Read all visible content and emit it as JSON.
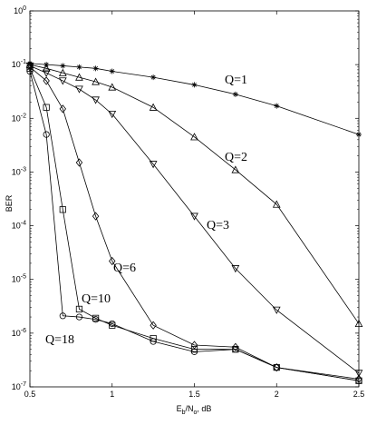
{
  "chart_data": {
    "type": "line",
    "xlabel": "E_b/N_o, dB",
    "xlabel_parts": {
      "main": "E",
      "sub1": "b",
      "mid": "/N",
      "sub2": "o",
      "suffix": ", dB"
    },
    "ylabel": "BER",
    "xlim": [
      0.5,
      2.5
    ],
    "ylim": [
      1e-07,
      1
    ],
    "yscale": "log",
    "grid": false,
    "x_ticks": [
      "0.5",
      "1",
      "1.5",
      "2",
      "2.5"
    ],
    "y_ticks": [
      {
        "base": "10",
        "exp": "0"
      },
      {
        "base": "10",
        "exp": "-1"
      },
      {
        "base": "10",
        "exp": "-2"
      },
      {
        "base": "10",
        "exp": "-3"
      },
      {
        "base": "10",
        "exp": "-4"
      },
      {
        "base": "10",
        "exp": "-5"
      },
      {
        "base": "10",
        "exp": "-6"
      },
      {
        "base": "10",
        "exp": "-7"
      }
    ],
    "series": [
      {
        "name": "Q=1",
        "marker": "asterisk",
        "x": [
          0.5,
          0.6,
          0.7,
          0.8,
          0.9,
          1.0,
          1.25,
          1.5,
          1.75,
          2.0,
          2.5
        ],
        "y": [
          0.105,
          0.1,
          0.095,
          0.09,
          0.085,
          0.075,
          0.058,
          0.042,
          0.028,
          0.017,
          0.005
        ]
      },
      {
        "name": "Q=2",
        "marker": "triangle-up",
        "x": [
          0.5,
          0.6,
          0.7,
          0.8,
          0.9,
          1.0,
          1.25,
          1.5,
          1.75,
          2.0,
          2.5
        ],
        "y": [
          0.1,
          0.085,
          0.07,
          0.058,
          0.048,
          0.038,
          0.016,
          0.0045,
          0.0011,
          0.00025,
          1.5e-06
        ]
      },
      {
        "name": "Q=3",
        "marker": "triangle-down",
        "x": [
          0.5,
          0.6,
          0.7,
          0.8,
          0.9,
          1.0,
          1.25,
          1.5,
          1.75,
          2.0,
          2.5
        ],
        "y": [
          0.095,
          0.07,
          0.05,
          0.035,
          0.022,
          0.012,
          0.0014,
          0.00015,
          1.6e-05,
          2.7e-06,
          1.8e-07
        ]
      },
      {
        "name": "Q=6",
        "marker": "diamond",
        "x": [
          0.5,
          0.6,
          0.7,
          0.8,
          0.9,
          1.0,
          1.25,
          1.5,
          1.75,
          2.0,
          2.5
        ],
        "y": [
          0.09,
          0.05,
          0.015,
          0.0015,
          0.00015,
          2.2e-05,
          1.4e-06,
          6e-07,
          5.5e-07,
          2.3e-07,
          1.4e-07
        ]
      },
      {
        "name": "Q=10",
        "marker": "square",
        "x": [
          0.5,
          0.6,
          0.7,
          0.8,
          0.9,
          1.0,
          1.25,
          1.5,
          1.75,
          2.0,
          2.5
        ],
        "y": [
          0.085,
          0.016,
          0.0002,
          2.8e-06,
          1.9e-06,
          1.4e-06,
          8e-07,
          5e-07,
          5e-07,
          2.3e-07,
          1.3e-07
        ]
      },
      {
        "name": "Q=18",
        "marker": "circle",
        "x": [
          0.5,
          0.6,
          0.7,
          0.8,
          0.9,
          1.0,
          1.25,
          1.5,
          1.75,
          2.0,
          2.5
        ],
        "y": [
          0.075,
          0.005,
          2.1e-06,
          2e-06,
          1.8e-06,
          1.5e-06,
          7e-07,
          4.5e-07,
          5e-07,
          2.3e-07,
          1.3e-07
        ]
      }
    ]
  }
}
